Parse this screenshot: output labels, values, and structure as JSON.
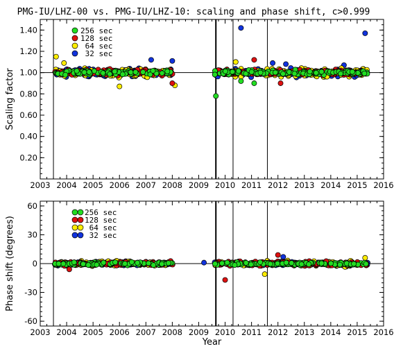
{
  "title": "PMG-IU/LHZ-00 vs. PMG-IU/LHZ-10: scaling and phase shift, c>0.999",
  "colors": {
    "256 sec": "#22dd22",
    "128 sec": "#dd1111",
    "64 sec": "#ffee00",
    "32 sec": "#1133dd"
  },
  "chart_data": [
    {
      "type": "scatter",
      "ylabel": "Scaling factor",
      "xlabel": "",
      "xlim": [
        2003,
        2016
      ],
      "ylim": [
        0.0,
        1.5
      ],
      "xticks": [
        "2003",
        "2004",
        "2005",
        "2006",
        "2007",
        "2008",
        "2009",
        "2010",
        "2011",
        "2012",
        "2013",
        "2014",
        "2015",
        "2016"
      ],
      "yticks": [
        "0.20",
        "0.40",
        "0.60",
        "0.80",
        "1.00",
        "1.20",
        "1.40"
      ],
      "reference_line": 1.0,
      "vertical_lines": [
        2003.5,
        2009.65,
        2010.3,
        2011.6
      ],
      "legend_position": "top-left",
      "series": [
        {
          "name": "256 sec",
          "data_description": "~1.00, spread 0.95-1.05, 2003.5-2008.0 and 2009.6-2015.4",
          "outliers": [
            [
              2009.65,
              0.78
            ],
            [
              2010.6,
              0.92
            ],
            [
              2011.1,
              0.9
            ]
          ]
        },
        {
          "name": "128 sec",
          "data_description": "~1.00, spread 0.93-1.07",
          "outliers": [
            [
              2008.0,
              0.9
            ],
            [
              2011.1,
              1.12
            ],
            [
              2012.1,
              0.9
            ]
          ]
        },
        {
          "name": "64 sec",
          "data_description": "~1.00, spread 0.90-1.10",
          "outliers": [
            [
              2003.6,
              1.15
            ],
            [
              2006.0,
              0.87
            ],
            [
              2008.1,
              0.88
            ],
            [
              2003.9,
              1.09
            ],
            [
              2010.4,
              1.1
            ]
          ]
        },
        {
          "name": "32 sec",
          "data_description": "~1.00, spread 0.92-1.10",
          "outliers": [
            [
              2010.6,
              1.42
            ],
            [
              2015.3,
              1.37
            ],
            [
              2007.2,
              1.12
            ],
            [
              2008.0,
              1.11
            ],
            [
              2011.8,
              1.09
            ],
            [
              2012.3,
              1.08
            ],
            [
              2014.5,
              1.07
            ]
          ]
        }
      ]
    },
    {
      "type": "scatter",
      "ylabel": "Phase shift (degrees)",
      "xlabel": "Year",
      "xlim": [
        2003,
        2016
      ],
      "ylim": [
        -65,
        65
      ],
      "xticks": [
        "2003",
        "2004",
        "2005",
        "2006",
        "2007",
        "2008",
        "2009",
        "2010",
        "2011",
        "2012",
        "2013",
        "2014",
        "2015",
        "2016"
      ],
      "yticks": [
        "-60",
        "-30",
        "0",
        "30",
        "60"
      ],
      "reference_line": 0,
      "vertical_lines": [
        2003.5,
        2009.65,
        2010.3,
        2011.6
      ],
      "legend_position": "top-left",
      "series": [
        {
          "name": "256 sec",
          "data_description": "~0 deg, spread -4 to 4",
          "outliers": []
        },
        {
          "name": "128 sec",
          "data_description": "~0 deg, spread -6 to 6",
          "outliers": [
            [
              2010.0,
              -17
            ],
            [
              2012.0,
              9
            ],
            [
              2004.1,
              -6
            ]
          ]
        },
        {
          "name": "64 sec",
          "data_description": "~0 deg, spread -8 to 8",
          "outliers": [
            [
              2011.5,
              -11
            ],
            [
              2015.3,
              6
            ]
          ]
        },
        {
          "name": "32 sec",
          "data_description": "~0 deg, spread -5 to 5",
          "outliers": [
            [
              2009.2,
              1
            ],
            [
              2012.2,
              7
            ]
          ]
        }
      ]
    }
  ]
}
